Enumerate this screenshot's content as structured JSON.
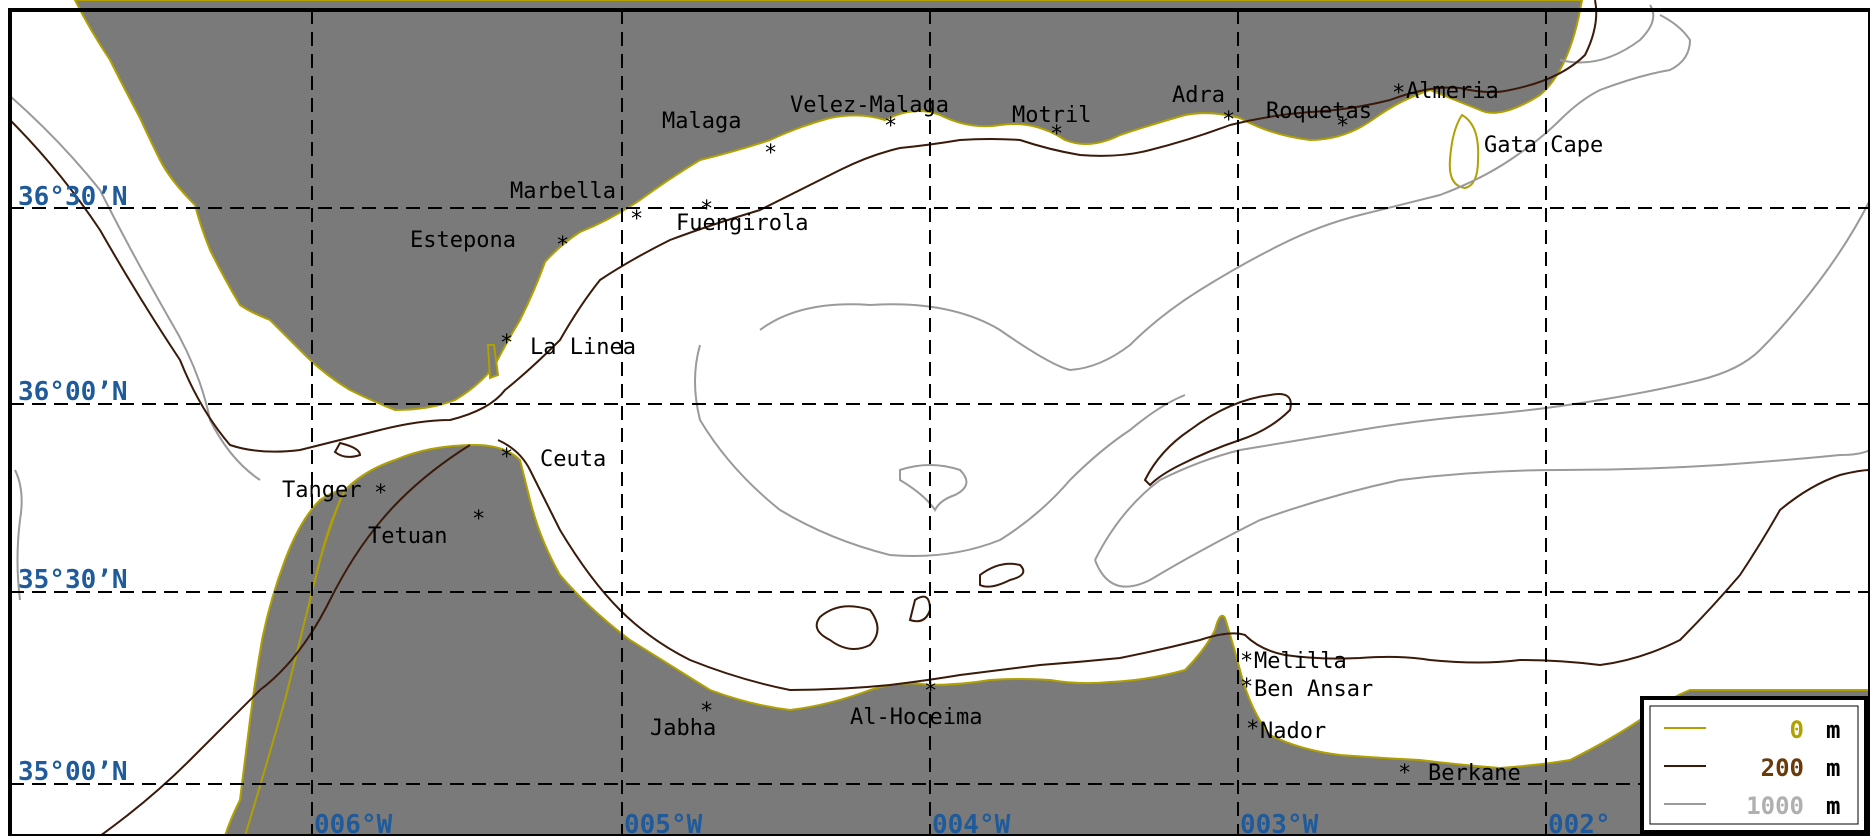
{
  "colors": {
    "land": "#7a7a7a",
    "sea": "#ffffff",
    "coast": "#b0a000",
    "isobath_200": "#3a1a0a",
    "isobath_1000": "#9a9a9a",
    "grid": "#000000",
    "coord_label": "#1f5a9a"
  },
  "latitude_labels": [
    {
      "id": "lat-3630",
      "text": "36°30’N"
    },
    {
      "id": "lat-3600",
      "text": "36°00’N"
    },
    {
      "id": "lat-3530",
      "text": "35°30’N"
    },
    {
      "id": "lat-3500",
      "text": "35°00’N"
    }
  ],
  "longitude_labels": [
    {
      "id": "lon-006",
      "text": "006°W"
    },
    {
      "id": "lon-005",
      "text": "005°W"
    },
    {
      "id": "lon-004",
      "text": "004°W"
    },
    {
      "id": "lon-003",
      "text": "003°W"
    },
    {
      "id": "lon-002",
      "text": "002°"
    }
  ],
  "cities": [
    {
      "id": "malaga",
      "name": "Malaga"
    },
    {
      "id": "velez-malaga",
      "name": "Velez-Malaga"
    },
    {
      "id": "motril",
      "name": "Motril"
    },
    {
      "id": "adra",
      "name": "Adra"
    },
    {
      "id": "roquetas",
      "name": "Roquetas"
    },
    {
      "id": "almeria",
      "name": "Almeria"
    },
    {
      "id": "gata-cape",
      "name": "Gata Cape"
    },
    {
      "id": "marbella",
      "name": "Marbella"
    },
    {
      "id": "fuengirola",
      "name": "Fuengirola"
    },
    {
      "id": "estepona",
      "name": "Estepona"
    },
    {
      "id": "la-linea",
      "name": "La Linea"
    },
    {
      "id": "ceuta",
      "name": "Ceuta"
    },
    {
      "id": "tanger",
      "name": "Tanger"
    },
    {
      "id": "tetuan",
      "name": "Tetuan"
    },
    {
      "id": "melilla",
      "name": "Melilla"
    },
    {
      "id": "ben-ansar",
      "name": "Ben Ansar"
    },
    {
      "id": "nador",
      "name": "Nador"
    },
    {
      "id": "jabha",
      "name": "Jabha"
    },
    {
      "id": "al-hoceima",
      "name": "Al-Hoceima"
    },
    {
      "id": "berkane",
      "name": "Berkane"
    }
  ],
  "legend": {
    "entries": [
      {
        "id": "legend-0m",
        "value": "0",
        "unit": "m",
        "color": "#b0a000"
      },
      {
        "id": "legend-200m",
        "value": "200",
        "unit": "m",
        "color": "#3a1a0a"
      },
      {
        "id": "legend-1000m",
        "value": "1000",
        "unit": "m",
        "color": "#9a9a9a"
      }
    ]
  }
}
